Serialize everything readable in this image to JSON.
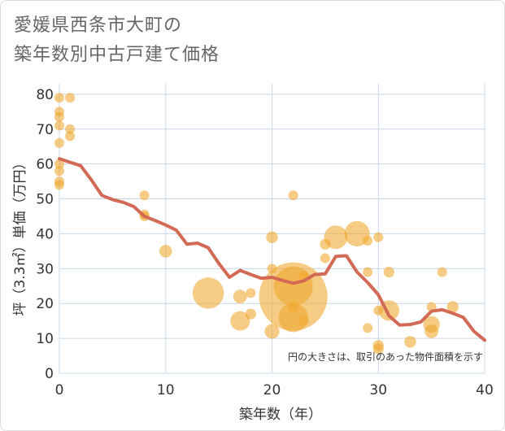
{
  "title_lines": [
    "愛媛県西条市大町の",
    "築年数別中古戸建て価格"
  ],
  "chart_data": {
    "type": "scatter",
    "title": "愛媛県西条市大町の築年数別中古戸建て価格",
    "xlabel": "築年数（年）",
    "ylabel": "坪（3.3㎡）単価（万円）",
    "xlim": [
      0,
      40
    ],
    "ylim": [
      0,
      83
    ],
    "xticks": [
      0,
      10,
      20,
      30,
      40
    ],
    "yticks": [
      0,
      10,
      20,
      30,
      40,
      50,
      60,
      70,
      80
    ],
    "grid": true,
    "note": "円の大きさは、取引のあった物件面積を示す",
    "colors": {
      "bubble": "#f0a830",
      "line": "#d26a55",
      "grid": "#c8d8e8"
    },
    "bubbles": [
      {
        "x": 0,
        "y": 79,
        "size": 1
      },
      {
        "x": 0,
        "y": 75,
        "size": 1
      },
      {
        "x": 0,
        "y": 73.5,
        "size": 1
      },
      {
        "x": 0,
        "y": 71,
        "size": 1
      },
      {
        "x": 0,
        "y": 66,
        "size": 1
      },
      {
        "x": 0,
        "y": 60,
        "size": 1
      },
      {
        "x": 0,
        "y": 58,
        "size": 1
      },
      {
        "x": 0,
        "y": 55,
        "size": 1
      },
      {
        "x": 0,
        "y": 54,
        "size": 1
      },
      {
        "x": 1,
        "y": 79,
        "size": 1
      },
      {
        "x": 1,
        "y": 70,
        "size": 1
      },
      {
        "x": 1,
        "y": 68,
        "size": 1
      },
      {
        "x": 8,
        "y": 51,
        "size": 1
      },
      {
        "x": 8,
        "y": 45.5,
        "size": 1
      },
      {
        "x": 8,
        "y": 45,
        "size": 1
      },
      {
        "x": 10,
        "y": 35,
        "size": 1.3
      },
      {
        "x": 14,
        "y": 23,
        "size": 3.2
      },
      {
        "x": 17,
        "y": 22,
        "size": 1.4
      },
      {
        "x": 17,
        "y": 15,
        "size": 2
      },
      {
        "x": 18,
        "y": 23,
        "size": 1
      },
      {
        "x": 18,
        "y": 17,
        "size": 1.1
      },
      {
        "x": 20,
        "y": 39,
        "size": 1.2
      },
      {
        "x": 20,
        "y": 30,
        "size": 1
      },
      {
        "x": 20,
        "y": 12,
        "size": 1.5
      },
      {
        "x": 22,
        "y": 51,
        "size": 1
      },
      {
        "x": 22,
        "y": 22,
        "size": 7
      },
      {
        "x": 22,
        "y": 25,
        "size": 4
      },
      {
        "x": 22,
        "y": 16,
        "size": 3
      },
      {
        "x": 22,
        "y": 19,
        "size": 1.1
      },
      {
        "x": 23,
        "y": 15,
        "size": 1
      },
      {
        "x": 23,
        "y": 28,
        "size": 1
      },
      {
        "x": 25,
        "y": 37,
        "size": 1.1
      },
      {
        "x": 25,
        "y": 33,
        "size": 1
      },
      {
        "x": 26,
        "y": 39,
        "size": 2.4
      },
      {
        "x": 28,
        "y": 40,
        "size": 2.6
      },
      {
        "x": 29,
        "y": 38,
        "size": 1
      },
      {
        "x": 29,
        "y": 29,
        "size": 1
      },
      {
        "x": 29,
        "y": 13,
        "size": 1
      },
      {
        "x": 30,
        "y": 39,
        "size": 1
      },
      {
        "x": 30,
        "y": 18,
        "size": 1
      },
      {
        "x": 30,
        "y": 8,
        "size": 1.1
      },
      {
        "x": 30,
        "y": 7,
        "size": 1.1
      },
      {
        "x": 31,
        "y": 29,
        "size": 1.1
      },
      {
        "x": 31,
        "y": 18,
        "size": 2.1
      },
      {
        "x": 33,
        "y": 9,
        "size": 1.2
      },
      {
        "x": 35,
        "y": 19,
        "size": 1
      },
      {
        "x": 35,
        "y": 14,
        "size": 1.7
      },
      {
        "x": 35,
        "y": 12,
        "size": 1.4
      },
      {
        "x": 36,
        "y": 29,
        "size": 1
      },
      {
        "x": 37,
        "y": 19,
        "size": 1.2
      }
    ],
    "trend": {
      "x": [
        0,
        1,
        2,
        3,
        4,
        5,
        6,
        7,
        8,
        9,
        10,
        11,
        12,
        13,
        14,
        15,
        16,
        17,
        18,
        19,
        20,
        21,
        22,
        23,
        24,
        25,
        26,
        27,
        28,
        29,
        30,
        31,
        32,
        33,
        34,
        35,
        36,
        37,
        38,
        39,
        40
      ],
      "y": [
        61.5,
        60.5,
        59.5,
        55.5,
        51,
        49.8,
        49,
        47.8,
        45,
        43.8,
        42.5,
        41,
        37,
        37.3,
        36,
        31.5,
        27.5,
        29.5,
        28.3,
        27.2,
        27.5,
        26.6,
        25.8,
        26.5,
        28.3,
        28.5,
        33.5,
        33.7,
        29,
        26,
        22.5,
        16.5,
        13.8,
        14,
        14.7,
        17.8,
        18.2,
        17.2,
        16,
        12,
        9.5
      ]
    }
  }
}
